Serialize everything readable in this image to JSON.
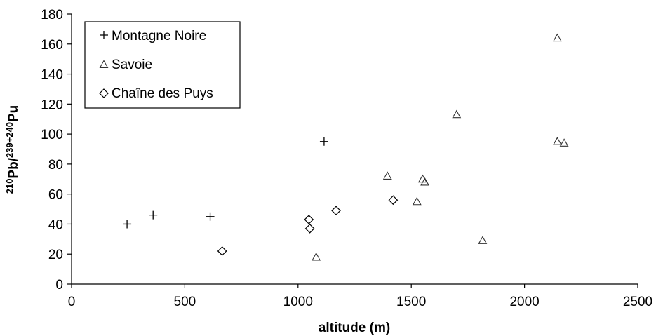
{
  "chart_data": {
    "type": "scatter",
    "xlabel": "altitude (m)",
    "ylabel": {
      "sup1": "210",
      "main1": "Pb/",
      "sup2": "239+240",
      "main2": "Pu"
    },
    "xlim": [
      0,
      2500
    ],
    "ylim": [
      0,
      180
    ],
    "xticks": [
      0,
      500,
      1000,
      1500,
      2000,
      2500
    ],
    "yticks": [
      0,
      20,
      40,
      60,
      80,
      100,
      120,
      140,
      160,
      180
    ],
    "grid": false,
    "legend_position": "top-left",
    "series": [
      {
        "name": "Montagne Noire",
        "marker": "plus",
        "color": "#000000",
        "points": [
          [
            245,
            40
          ],
          [
            360,
            46
          ],
          [
            612,
            45
          ],
          [
            1115,
            95
          ]
        ]
      },
      {
        "name": "Savoie",
        "marker": "triangle",
        "color": "#333333",
        "points": [
          [
            1080,
            18
          ],
          [
            1395,
            72
          ],
          [
            1525,
            55
          ],
          [
            1550,
            70
          ],
          [
            1560,
            68
          ],
          [
            1700,
            113
          ],
          [
            1815,
            29
          ],
          [
            2145,
            164
          ],
          [
            2145,
            95
          ],
          [
            2175,
            94
          ]
        ]
      },
      {
        "name": "Chaîne des Puys",
        "marker": "diamond",
        "color": "#000000",
        "points": [
          [
            665,
            22
          ],
          [
            1048,
            43
          ],
          [
            1052,
            37
          ],
          [
            1168,
            49
          ],
          [
            1420,
            56
          ]
        ]
      }
    ]
  }
}
